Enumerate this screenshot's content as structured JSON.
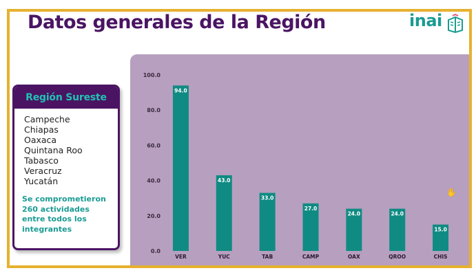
{
  "slide": {
    "title": "Datos generales de la Región",
    "logo_text": "inai",
    "colors": {
      "border": "#e6b12f",
      "title": "#4a1463",
      "teal": "#1a9b93",
      "panel": "#b79fbf",
      "bar": "#0f8b83"
    }
  },
  "region_card": {
    "header": "Región Sureste",
    "states": [
      "Campeche",
      "Chiapas",
      "Oaxaca",
      "Quintana Roo",
      "Tabasco",
      "Veracruz",
      "Yucatán"
    ],
    "note": "Se comprometieron 260 actividades entre todos los integrantes"
  },
  "chart_data": {
    "type": "bar",
    "categories": [
      "VER",
      "YUC",
      "TAB",
      "CAMP",
      "OAX",
      "QROO",
      "CHIS"
    ],
    "values": [
      94.0,
      43.0,
      33.0,
      27.0,
      24.0,
      24.0,
      15.0
    ],
    "ylim": [
      0,
      100
    ],
    "yticks": [
      0,
      20,
      40,
      60,
      80,
      100
    ],
    "ytick_labels": [
      "0.0",
      "20.0",
      "40.0",
      "60.0",
      "80.0",
      "100.0"
    ],
    "data_labels": [
      "94.0",
      "43.0",
      "33.0",
      "27.0",
      "24.0",
      "24.0",
      "15.0"
    ],
    "grid": false,
    "legend": "none"
  }
}
